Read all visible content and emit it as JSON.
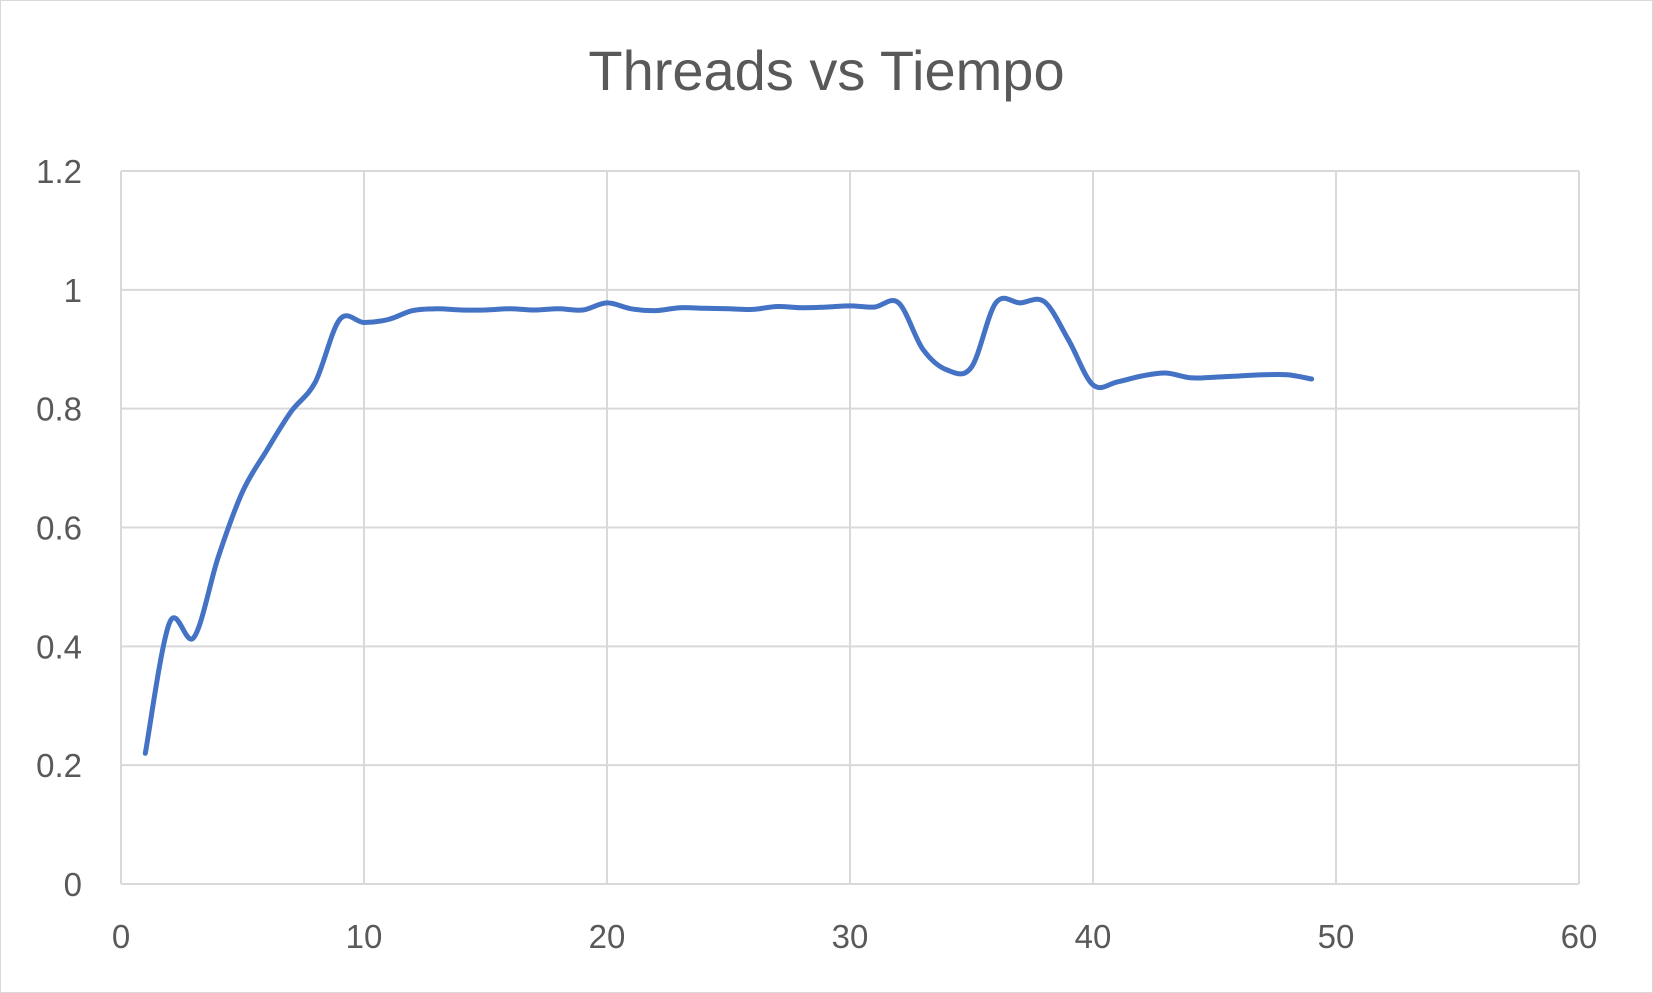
{
  "chart_data": {
    "type": "scatter",
    "title": "Threads vs Tiempo",
    "xlabel": "",
    "ylabel": "",
    "xlim": [
      0,
      60
    ],
    "ylim": [
      0,
      1.2
    ],
    "x_ticks": [
      "0",
      "10",
      "20",
      "30",
      "40",
      "50",
      "60"
    ],
    "y_ticks": [
      "0",
      "0.2",
      "0.4",
      "0.6",
      "0.8",
      "1",
      "1.2"
    ],
    "grid": true,
    "legend": "none",
    "series": [
      {
        "color": "#4472c4",
        "smooth": true,
        "points": [
          [
            1,
            0.22
          ],
          [
            2,
            0.44
          ],
          [
            3,
            0.415
          ],
          [
            4,
            0.55
          ],
          [
            5,
            0.66
          ],
          [
            6,
            0.73
          ],
          [
            7,
            0.795
          ],
          [
            8,
            0.845
          ],
          [
            9,
            0.95
          ],
          [
            10,
            0.945
          ],
          [
            11,
            0.95
          ],
          [
            12,
            0.965
          ],
          [
            13,
            0.968
          ],
          [
            14,
            0.966
          ],
          [
            15,
            0.966
          ],
          [
            16,
            0.968
          ],
          [
            17,
            0.966
          ],
          [
            18,
            0.968
          ],
          [
            19,
            0.966
          ],
          [
            20,
            0.978
          ],
          [
            21,
            0.968
          ],
          [
            22,
            0.965
          ],
          [
            23,
            0.97
          ],
          [
            24,
            0.969
          ],
          [
            25,
            0.968
          ],
          [
            26,
            0.967
          ],
          [
            27,
            0.972
          ],
          [
            28,
            0.97
          ],
          [
            29,
            0.971
          ],
          [
            30,
            0.973
          ],
          [
            31,
            0.971
          ],
          [
            32,
            0.978
          ],
          [
            33,
            0.9
          ],
          [
            34,
            0.865
          ],
          [
            35,
            0.87
          ],
          [
            36,
            0.978
          ],
          [
            37,
            0.978
          ],
          [
            38,
            0.98
          ],
          [
            39,
            0.915
          ],
          [
            40,
            0.84
          ],
          [
            41,
            0.845
          ],
          [
            42,
            0.855
          ],
          [
            43,
            0.86
          ],
          [
            44,
            0.852
          ],
          [
            45,
            0.853
          ],
          [
            46,
            0.855
          ],
          [
            47,
            0.857
          ],
          [
            48,
            0.857
          ],
          [
            49,
            0.85
          ]
        ]
      }
    ]
  }
}
